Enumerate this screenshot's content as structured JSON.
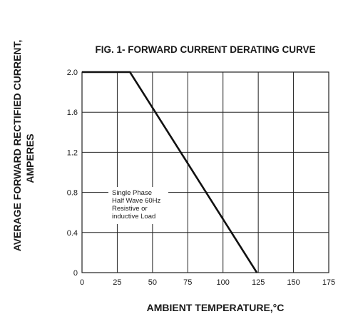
{
  "chart_data": {
    "type": "line",
    "title": "FIG. 1- FORWARD CURRENT DERATING CURVE",
    "xlabel": "AMBIENT TEMPERATURE,°C",
    "ylabel_line1": "AVERAGE FORWARD RECTIFIED CURRENT,",
    "ylabel_line2": "AMPERES",
    "xlim": [
      0,
      175
    ],
    "ylim": [
      0,
      2.0
    ],
    "x_ticks": [
      0,
      25,
      50,
      75,
      100,
      125,
      150,
      175
    ],
    "x_tick_labels": [
      "0",
      "25",
      "50",
      "75",
      "100",
      "125",
      "150",
      "175"
    ],
    "y_ticks": [
      0,
      0.4,
      0.8,
      1.2,
      1.6,
      2.0
    ],
    "y_tick_labels": [
      "0",
      "0.4",
      "0.8",
      "1.2",
      "1.6",
      "2.0"
    ],
    "grid": true,
    "series": [
      {
        "x": [
          0,
          34,
          124
        ],
        "y": [
          2.0,
          2.0,
          0
        ]
      }
    ],
    "annotation": {
      "lines": [
        "Single Phase",
        "Half Wave 60Hz",
        "Resistive or",
        "inductive Load"
      ]
    },
    "colors": {
      "line": "#111111",
      "grid": "#222222",
      "background": "#ffffff"
    }
  }
}
